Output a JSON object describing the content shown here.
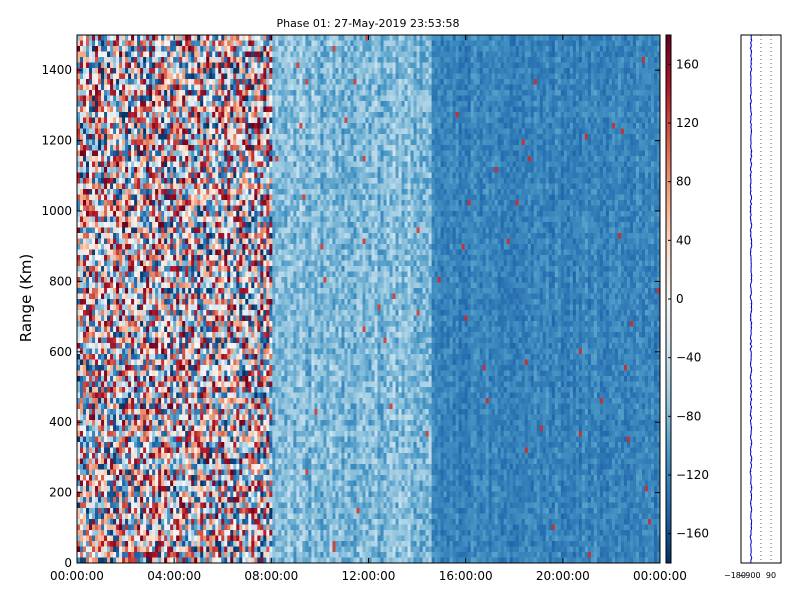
{
  "chart_data": [
    {
      "type": "heatmap",
      "title": "Phase 01: 27-May-2019 23:53:58",
      "xlabel": "",
      "ylabel": "Range (Km)",
      "xlim": [
        "00:00:00",
        "00:00:00"
      ],
      "ylim": [
        0,
        1500
      ],
      "x_ticks": [
        "00:00:00",
        "04:00:00",
        "08:00:00",
        "12:00:00",
        "16:00:00",
        "20:00:00",
        "00:00:00"
      ],
      "y_ticks": [
        0,
        200,
        400,
        600,
        800,
        1000,
        1200,
        1400
      ],
      "grid": false,
      "colormap": "RdBu_r",
      "colorbar": {
        "range": [
          -180,
          180
        ],
        "ticks": [
          160,
          120,
          80,
          40,
          0,
          -40,
          -80,
          -120,
          -160
        ]
      },
      "regions": [
        {
          "x_range": [
            "00:00:00",
            "08:00:00"
          ],
          "description": "mixed noisy values (-180 to 180)"
        },
        {
          "x_range": [
            "08:00:00",
            "14:30:00"
          ],
          "approx_value": -80
        },
        {
          "x_range": [
            "14:30:00",
            "24:00:00"
          ],
          "approx_value": -120
        }
      ]
    },
    {
      "type": "line",
      "title": "",
      "xlabel": "",
      "ylabel": "",
      "x_ticks": [
        "-180",
        "-90",
        "0",
        "90"
      ],
      "xlim": [
        -180,
        180
      ],
      "ylim": [
        0,
        1500
      ],
      "grid": true,
      "series": [
        {
          "color": "#0000cc",
          "approx_x_value": -90
        }
      ]
    }
  ],
  "colors": {
    "profile_line": "#0000cc",
    "frame": "#000000"
  }
}
